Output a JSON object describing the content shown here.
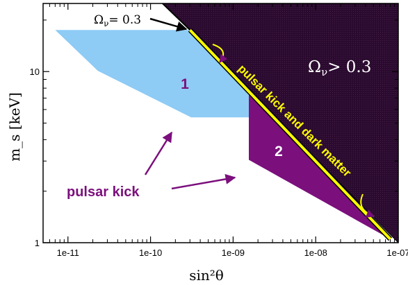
{
  "chart_data": {
    "type": "area",
    "title": "",
    "xlabel": "sin²θ",
    "ylabel": "m_s [keV]",
    "x_scale": "log",
    "y_scale": "log",
    "xlim": [
      5e-12,
      1e-07
    ],
    "ylim": [
      1,
      25
    ],
    "x_ticks": [
      {
        "value": 1e-11,
        "label": "1e-11"
      },
      {
        "value": 1e-10,
        "label": "1e-10"
      },
      {
        "value": 1e-09,
        "label": "1e-09"
      },
      {
        "value": 1e-08,
        "label": "1e-08"
      },
      {
        "value": 1e-07,
        "label": "1e-07"
      }
    ],
    "y_ticks": [
      {
        "value": 1,
        "label": "1"
      },
      {
        "value": 10,
        "label": "10"
      }
    ],
    "regions": [
      {
        "id": "omega-excluded",
        "label": "Ω",
        "label_sub": "ν",
        "label_rest": "> 0.3",
        "color": "#2a0a2e",
        "points": [
          [
            1.4e-10,
            25
          ],
          [
            1e-07,
            25
          ],
          [
            1e-07,
            1.0
          ],
          [
            3e-10,
            17.5
          ]
        ]
      },
      {
        "id": "region-1",
        "label": "1",
        "color": "#8ecbf5",
        "points": [
          [
            7e-12,
            17.5
          ],
          [
            3e-10,
            17.5
          ],
          [
            1.55e-09,
            7.3
          ],
          [
            1.55e-09,
            5.4
          ],
          [
            3.1e-10,
            5.4
          ],
          [
            2.3e-11,
            10.1
          ]
        ]
      },
      {
        "id": "region-2",
        "label": "2",
        "color": "#7b0f7c",
        "points": [
          [
            1.55e-09,
            7.3
          ],
          [
            8e-08,
            1.05
          ],
          [
            1.55e-09,
            3.05
          ]
        ]
      }
    ],
    "lines": [
      {
        "id": "omega-line",
        "label": "Ω",
        "label_sub": "ν",
        "label_rest": "= 0.3",
        "color": "#000000",
        "points": [
          [
            1.4e-10,
            25
          ],
          [
            3e-10,
            17.5
          ]
        ]
      },
      {
        "id": "pulsar-dark-matter-line",
        "label": "pulsar kick and dark matter",
        "color": "#ffff00",
        "points": [
          [
            3e-10,
            17.5
          ],
          [
            8e-08,
            1.05
          ]
        ]
      }
    ],
    "annotations": [
      {
        "id": "pulsar-kick",
        "text": "pulsar kick",
        "color": "#7b0f7c"
      }
    ],
    "grid": false,
    "legend": "none"
  }
}
